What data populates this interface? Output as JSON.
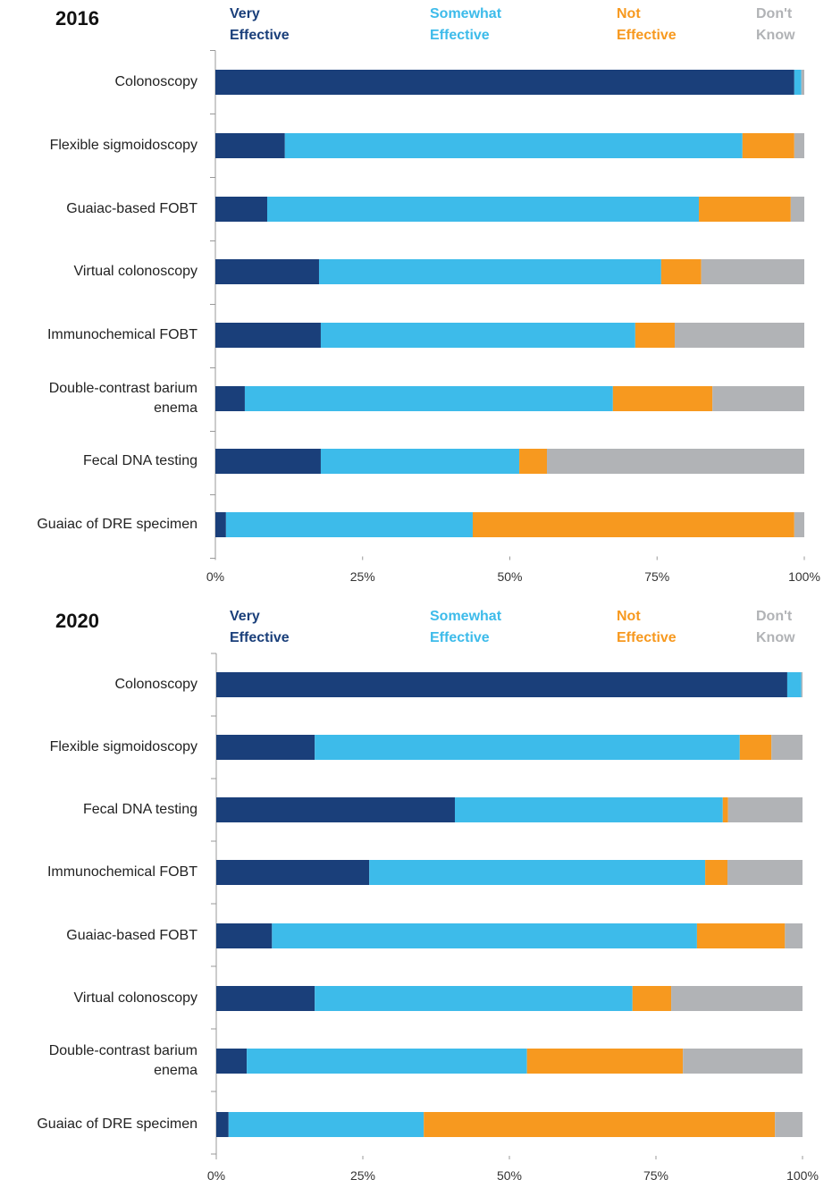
{
  "chart_data": [
    {
      "type": "bar",
      "orientation": "horizontal",
      "stacked": true,
      "title": "2016",
      "categories": [
        "Colonoscopy",
        "Flexible sigmoidoscopy",
        "Guaiac-based FOBT",
        "Virtual colonoscopy",
        "Immunochemical FOBT",
        "Double-contrast barium enema",
        "Fecal DNA testing",
        "Guaiac of DRE specimen"
      ],
      "series": [
        {
          "name": "Very Effective",
          "color": "#1a3f7a",
          "values": [
            98.3,
            11.8,
            8.8,
            17.6,
            17.9,
            5.0,
            17.9,
            1.8
          ]
        },
        {
          "name": "Somewhat Effective",
          "color": "#3dbbea",
          "values": [
            1.2,
            77.7,
            73.3,
            58.1,
            53.4,
            62.5,
            33.7,
            41.9
          ]
        },
        {
          "name": "Not Effective",
          "color": "#f7991f",
          "values": [
            0,
            8.8,
            15.6,
            6.8,
            6.7,
            16.9,
            4.7,
            54.6
          ]
        },
        {
          "name": "Don't Know",
          "color": "#b1b3b6",
          "values": [
            0.5,
            1.7,
            2.3,
            17.5,
            22.0,
            15.6,
            43.7,
            1.7
          ]
        }
      ],
      "xlim": [
        0,
        100
      ],
      "xticks": [
        {
          "value": 0,
          "label": "0%"
        },
        {
          "value": 25,
          "label": "25%"
        },
        {
          "value": 50,
          "label": "50%"
        },
        {
          "value": 75,
          "label": "75%"
        },
        {
          "value": 100,
          "label": "100%"
        }
      ]
    },
    {
      "type": "bar",
      "orientation": "horizontal",
      "stacked": true,
      "title": "2020",
      "categories": [
        "Colonoscopy",
        "Flexible sigmoidoscopy",
        "Fecal DNA testing",
        "Immunochemical FOBT",
        "Guaiac-based FOBT",
        "Virtual colonoscopy",
        "Double-contrast barium enema",
        "Guaiac of DRE specimen"
      ],
      "series": [
        {
          "name": "Very Effective",
          "color": "#1a3f7a",
          "values": [
            97.4,
            16.8,
            40.7,
            26.1,
            9.5,
            16.8,
            5.2,
            2.1
          ]
        },
        {
          "name": "Somewhat Effective",
          "color": "#3dbbea",
          "values": [
            2.4,
            72.5,
            45.7,
            57.3,
            72.5,
            54.2,
            47.8,
            33.3
          ]
        },
        {
          "name": "Not Effective",
          "color": "#f7991f",
          "values": [
            0,
            5.4,
            0.9,
            3.8,
            15.0,
            6.6,
            26.6,
            59.9
          ]
        },
        {
          "name": "Don't Know",
          "color": "#b1b3b6",
          "values": [
            0.2,
            5.3,
            12.7,
            12.8,
            3.0,
            22.4,
            20.4,
            4.7
          ]
        }
      ],
      "xlim": [
        0,
        100
      ],
      "xticks": [
        {
          "value": 0,
          "label": "0%"
        },
        {
          "value": 25,
          "label": "25%"
        },
        {
          "value": 50,
          "label": "50%"
        },
        {
          "value": 75,
          "label": "75%"
        },
        {
          "value": 100,
          "label": "100%"
        }
      ]
    }
  ]
}
